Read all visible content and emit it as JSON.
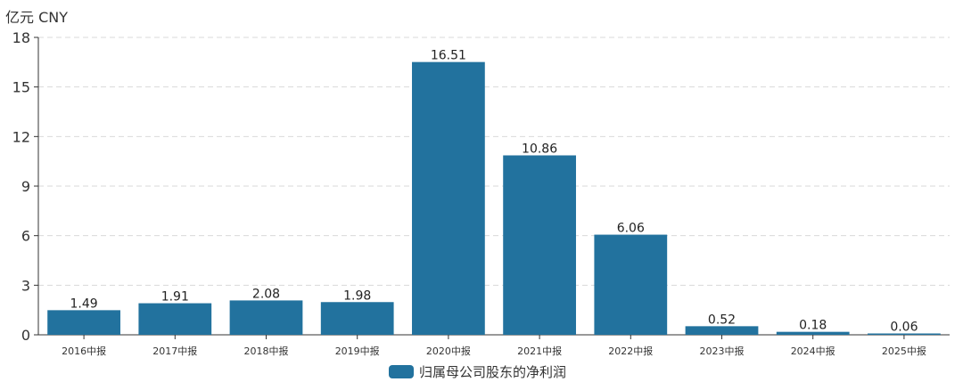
{
  "unit_label": "亿元  CNY",
  "colors": {
    "bar": "#22729e",
    "grid": "#d9d9d9",
    "axis": "#333333"
  },
  "chart_data": {
    "type": "bar",
    "categories": [
      "2016中报",
      "2017中报",
      "2018中报",
      "2019中报",
      "2020中报",
      "2021中报",
      "2022中报",
      "2023中报",
      "2024中报",
      "2025中报"
    ],
    "series": [
      {
        "name": "归属母公司股东的净利润",
        "values": [
          1.49,
          1.91,
          2.08,
          1.98,
          16.51,
          10.86,
          6.06,
          0.52,
          0.18,
          0.06
        ],
        "labels": [
          "1.49",
          "1.91",
          "2.08",
          "1.98",
          "16.51",
          "10.86",
          "6.06",
          "0.52",
          "0.18",
          "0.06"
        ]
      }
    ],
    "ylim": [
      0,
      18
    ],
    "yticks": [
      0,
      3,
      6,
      9,
      12,
      15,
      18
    ],
    "grid": true,
    "legend_position": "bottom"
  }
}
